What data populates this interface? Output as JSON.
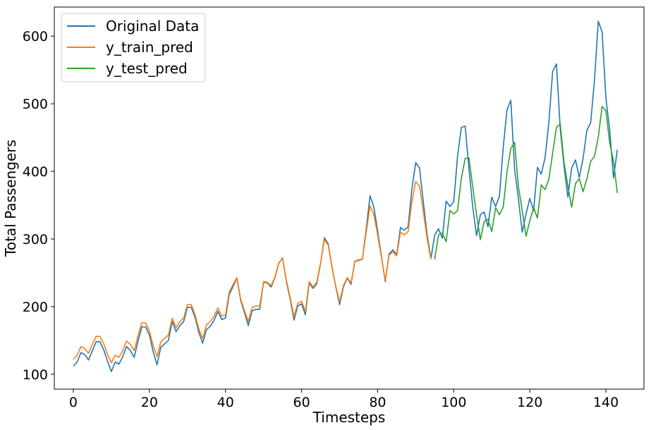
{
  "chart_data": {
    "type": "line",
    "xlabel": "Timesteps",
    "ylabel": "Total Passengers",
    "xlim": [
      -5,
      150
    ],
    "ylim": [
      78,
      643
    ],
    "xticks": [
      0,
      20,
      40,
      60,
      80,
      100,
      120,
      140
    ],
    "yticks": [
      100,
      200,
      300,
      400,
      500,
      600
    ],
    "legend_position": "top-left",
    "series": [
      {
        "name": "Original Data",
        "color": "#1f77b4",
        "x_start": 0,
        "values": [
          112,
          118,
          132,
          129,
          121,
          135,
          148,
          148,
          136,
          119,
          104,
          118,
          115,
          126,
          141,
          135,
          125,
          149,
          170,
          170,
          158,
          133,
          114,
          140,
          145,
          150,
          178,
          163,
          172,
          178,
          199,
          199,
          184,
          162,
          146,
          166,
          171,
          180,
          193,
          181,
          183,
          218,
          230,
          242,
          209,
          191,
          172,
          194,
          196,
          196,
          236,
          235,
          229,
          243,
          264,
          272,
          237,
          211,
          180,
          201,
          204,
          188,
          235,
          227,
          234,
          264,
          302,
          293,
          259,
          229,
          203,
          229,
          242,
          233,
          267,
          269,
          270,
          315,
          364,
          347,
          312,
          274,
          237,
          278,
          284,
          277,
          317,
          313,
          318,
          374,
          413,
          405,
          355,
          306,
          271,
          306,
          315,
          301,
          356,
          348,
          355,
          422,
          465,
          467,
          404,
          347,
          305,
          336,
          340,
          318,
          362,
          348,
          363,
          435,
          491,
          505,
          404,
          359,
          310,
          337,
          360,
          342,
          406,
          396,
          420,
          472,
          548,
          559,
          463,
          407,
          362,
          405,
          417,
          391,
          419,
          461,
          472,
          535,
          622,
          606,
          508,
          461,
          390,
          432
        ]
      },
      {
        "name": "y_train_pred",
        "color": "#ff7f0e",
        "x_start": 0,
        "values": [
          122,
          128,
          141,
          138,
          131,
          144,
          156,
          156,
          145,
          129,
          117,
          128,
          125,
          135,
          149,
          144,
          135,
          157,
          176,
          176,
          164,
          142,
          126,
          148,
          153,
          158,
          183,
          169,
          178,
          183,
          203,
          203,
          188,
          167,
          153,
          173,
          178,
          186,
          198,
          186,
          188,
          222,
          233,
          243,
          211,
          194,
          178,
          199,
          201,
          201,
          237,
          236,
          231,
          244,
          265,
          271,
          239,
          214,
          185,
          205,
          208,
          193,
          237,
          229,
          236,
          265,
          299,
          291,
          258,
          230,
          207,
          231,
          243,
          235,
          267,
          268,
          270,
          310,
          349,
          336,
          306,
          272,
          239,
          276,
          281,
          275,
          310,
          306,
          311,
          355,
          385,
          378,
          341,
          300,
          270
        ]
      },
      {
        "name": "y_test_pred",
        "color": "#2ca02c",
        "x_start": 95,
        "values": [
          270,
          306,
          309,
          296,
          342,
          337,
          342,
          390,
          419,
          420,
          377,
          336,
          299,
          326,
          329,
          311,
          346,
          336,
          347,
          399,
          434,
          443,
          378,
          342,
          304,
          327,
          346,
          331,
          380,
          373,
          388,
          427,
          465,
          470,
          413,
          378,
          347,
          382,
          389,
          370,
          389,
          415,
          422,
          451,
          496,
          490,
          442,
          415,
          368
        ]
      }
    ]
  }
}
